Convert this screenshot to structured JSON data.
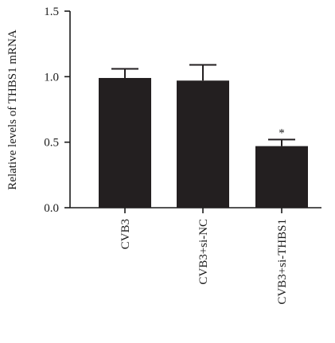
{
  "chart_data": {
    "type": "bar",
    "title": "",
    "xlabel": "",
    "ylabel": "Relative levels of THBS1 mRNA",
    "ylim": [
      0,
      1.5
    ],
    "yticks": [
      "0.0",
      "0.5",
      "1.0",
      "1.5"
    ],
    "grid": false,
    "categories": [
      "CVB3",
      "CVB3+si-NC",
      "CVB3+si-THBS1"
    ],
    "values": [
      0.99,
      0.97,
      0.47
    ],
    "errors": [
      0.07,
      0.12,
      0.05
    ],
    "annotations": [
      "",
      "",
      "*"
    ],
    "bar_color": "#231f20"
  }
}
